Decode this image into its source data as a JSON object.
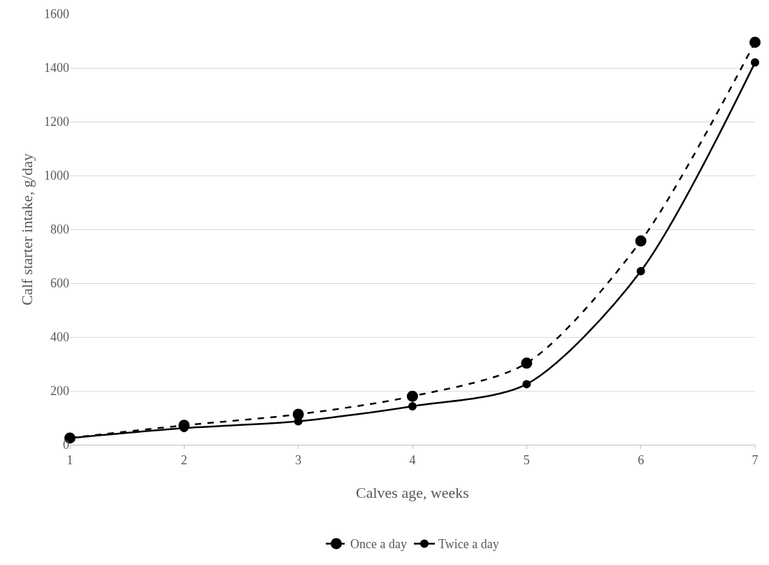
{
  "chart_data": {
    "type": "line",
    "xlabel": "Calves age, weeks",
    "ylabel": "Calf starter intake, g/day",
    "x": [
      1,
      2,
      3,
      4,
      5,
      6,
      7
    ],
    "series": [
      {
        "name": "Once a day",
        "color": "#000000",
        "line_style": "dashed",
        "values": [
          25,
          72,
          113,
          180,
          303,
          757,
          1495
        ]
      },
      {
        "name": "Twice a day",
        "color": "#000000",
        "line_style": "solid",
        "values": [
          25,
          62,
          87,
          143,
          225,
          645,
          1420
        ]
      }
    ],
    "xlim": [
      1,
      7
    ],
    "xticks": [
      1,
      2,
      3,
      4,
      5,
      6,
      7
    ],
    "ylim": [
      0,
      1600
    ],
    "yticks": [
      0,
      200,
      400,
      600,
      800,
      1000,
      1200,
      1400,
      1600
    ],
    "grid": "y",
    "legend": "bottom",
    "marker": "circle"
  }
}
